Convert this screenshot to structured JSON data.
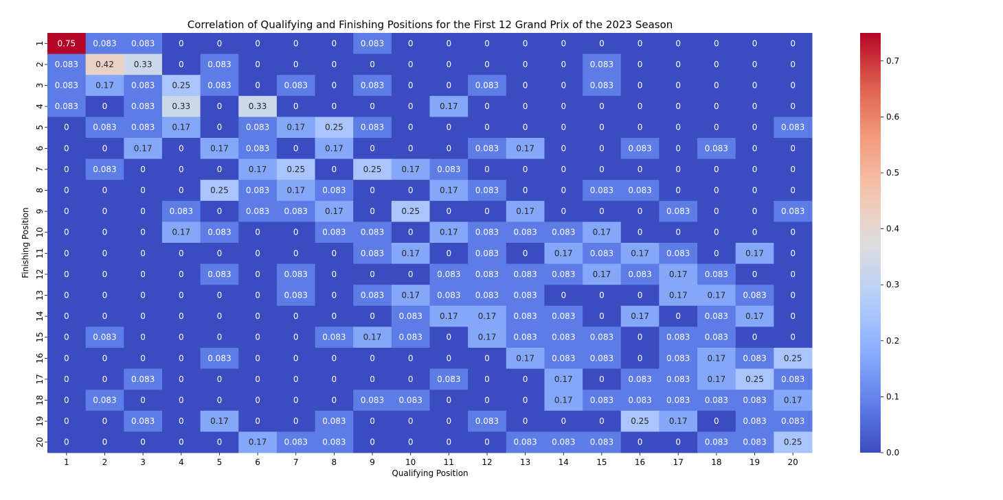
{
  "chart_data": {
    "type": "heatmap",
    "title": "Correlation of Qualifying and Finishing Positions for the First 12 Grand Prix of the 2023 Season",
    "xlabel": "Qualifying Position",
    "ylabel": "Finishing Position",
    "x_categories": [
      "1",
      "2",
      "3",
      "4",
      "5",
      "6",
      "7",
      "8",
      "9",
      "10",
      "11",
      "12",
      "13",
      "14",
      "15",
      "16",
      "17",
      "18",
      "19",
      "20"
    ],
    "y_categories": [
      "1",
      "2",
      "3",
      "4",
      "5",
      "6",
      "7",
      "8",
      "9",
      "10",
      "11",
      "12",
      "13",
      "14",
      "15",
      "16",
      "17",
      "18",
      "19",
      "20"
    ],
    "colormap": "coolwarm",
    "vmin": 0.0,
    "vmax": 0.75,
    "colorbar_ticks": [
      "0.0",
      "0.1",
      "0.2",
      "0.3",
      "0.4",
      "0.5",
      "0.6",
      "0.7"
    ],
    "values": [
      [
        "0.75",
        "0.083",
        "0.083",
        "0",
        "0",
        "0",
        "0",
        "0",
        "0.083",
        "0",
        "0",
        "0",
        "0",
        "0",
        "0",
        "0",
        "0",
        "0",
        "0",
        "0"
      ],
      [
        "0.083",
        "0.42",
        "0.33",
        "0",
        "0.083",
        "0",
        "0",
        "0",
        "0",
        "0",
        "0",
        "0",
        "0",
        "0",
        "0.083",
        "0",
        "0",
        "0",
        "0",
        "0"
      ],
      [
        "0.083",
        "0.17",
        "0.083",
        "0.25",
        "0.083",
        "0",
        "0.083",
        "0",
        "0.083",
        "0",
        "0",
        "0.083",
        "0",
        "0",
        "0.083",
        "0",
        "0",
        "0",
        "0",
        "0"
      ],
      [
        "0.083",
        "0",
        "0.083",
        "0.33",
        "0",
        "0.33",
        "0",
        "0",
        "0",
        "0",
        "0.17",
        "0",
        "0",
        "0",
        "0",
        "0",
        "0",
        "0",
        "0",
        "0"
      ],
      [
        "0",
        "0.083",
        "0.083",
        "0.17",
        "0",
        "0.083",
        "0.17",
        "0.25",
        "0.083",
        "0",
        "0",
        "0",
        "0",
        "0",
        "0",
        "0",
        "0",
        "0",
        "0",
        "0.083"
      ],
      [
        "0",
        "0",
        "0.17",
        "0",
        "0.17",
        "0.083",
        "0",
        "0.17",
        "0",
        "0",
        "0",
        "0.083",
        "0.17",
        "0",
        "0",
        "0.083",
        "0",
        "0.083",
        "0",
        "0"
      ],
      [
        "0",
        "0.083",
        "0",
        "0",
        "0",
        "0.17",
        "0.25",
        "0",
        "0.25",
        "0.17",
        "0.083",
        "0",
        "0",
        "0",
        "0",
        "0",
        "0",
        "0",
        "0",
        "0"
      ],
      [
        "0",
        "0",
        "0",
        "0",
        "0.25",
        "0.083",
        "0.17",
        "0.083",
        "0",
        "0",
        "0.17",
        "0.083",
        "0",
        "0",
        "0.083",
        "0.083",
        "0",
        "0",
        "0",
        "0"
      ],
      [
        "0",
        "0",
        "0",
        "0.083",
        "0",
        "0.083",
        "0.083",
        "0.17",
        "0",
        "0.25",
        "0",
        "0",
        "0.17",
        "0",
        "0",
        "0",
        "0.083",
        "0",
        "0",
        "0.083"
      ],
      [
        "0",
        "0",
        "0",
        "0.17",
        "0.083",
        "0",
        "0",
        "0.083",
        "0.083",
        "0",
        "0.17",
        "0.083",
        "0.083",
        "0.083",
        "0.17",
        "0",
        "0",
        "0",
        "0",
        "0"
      ],
      [
        "0",
        "0",
        "0",
        "0",
        "0",
        "0",
        "0",
        "0",
        "0.083",
        "0.17",
        "0",
        "0.083",
        "0",
        "0.17",
        "0.083",
        "0.17",
        "0.083",
        "0",
        "0.17",
        "0"
      ],
      [
        "0",
        "0",
        "0",
        "0",
        "0.083",
        "0",
        "0.083",
        "0",
        "0",
        "0",
        "0.083",
        "0.083",
        "0.083",
        "0.083",
        "0.17",
        "0.083",
        "0.17",
        "0.083",
        "0",
        "0"
      ],
      [
        "0",
        "0",
        "0",
        "0",
        "0",
        "0",
        "0.083",
        "0",
        "0.083",
        "0.17",
        "0.083",
        "0.083",
        "0.083",
        "0",
        "0",
        "0",
        "0.17",
        "0.17",
        "0.083",
        "0"
      ],
      [
        "0",
        "0",
        "0",
        "0",
        "0",
        "0",
        "0",
        "0",
        "0",
        "0.083",
        "0.17",
        "0.17",
        "0.083",
        "0.083",
        "0",
        "0.17",
        "0",
        "0.083",
        "0.17",
        "0"
      ],
      [
        "0",
        "0.083",
        "0",
        "0",
        "0",
        "0",
        "0",
        "0.083",
        "0.17",
        "0.083",
        "0",
        "0.17",
        "0.083",
        "0.083",
        "0.083",
        "0",
        "0.083",
        "0.083",
        "0",
        "0"
      ],
      [
        "0",
        "0",
        "0",
        "0",
        "0.083",
        "0",
        "0",
        "0",
        "0",
        "0",
        "0",
        "0",
        "0.17",
        "0.083",
        "0.083",
        "0",
        "0.083",
        "0.17",
        "0.083",
        "0.25"
      ],
      [
        "0",
        "0",
        "0.083",
        "0",
        "0",
        "0",
        "0",
        "0",
        "0",
        "0",
        "0.083",
        "0",
        "0",
        "0.17",
        "0",
        "0.083",
        "0.083",
        "0.17",
        "0.25",
        "0.083"
      ],
      [
        "0",
        "0.083",
        "0",
        "0",
        "0",
        "0",
        "0",
        "0",
        "0.083",
        "0.083",
        "0",
        "0",
        "0",
        "0.17",
        "0.083",
        "0.083",
        "0.083",
        "0.083",
        "0.083",
        "0.17"
      ],
      [
        "0",
        "0",
        "0.083",
        "0",
        "0.17",
        "0",
        "0",
        "0.083",
        "0",
        "0",
        "0",
        "0.083",
        "0",
        "0",
        "0",
        "0.25",
        "0.17",
        "0",
        "0.083",
        "0.083"
      ],
      [
        "0",
        "0",
        "0",
        "0",
        "0",
        "0.17",
        "0.083",
        "0.083",
        "0",
        "0",
        "0",
        "0",
        "0.083",
        "0.083",
        "0.083",
        "0",
        "0",
        "0.083",
        "0.083",
        "0.25"
      ]
    ]
  }
}
